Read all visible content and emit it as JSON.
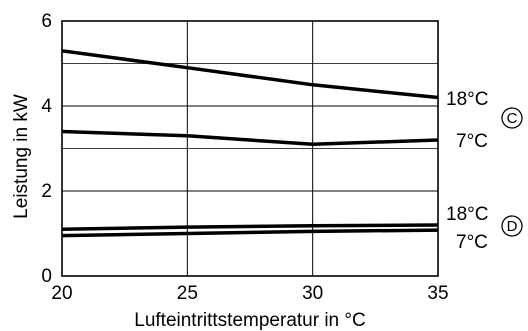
{
  "chart_data": {
    "type": "line",
    "title": "",
    "xlabel": "Lufteintrittstemperatur in °C",
    "ylabel": "Leistung in kW",
    "xlim": [
      20,
      35
    ],
    "ylim": [
      0,
      6
    ],
    "x_ticks": [
      "20",
      "25",
      "30",
      "35"
    ],
    "y_ticks": [
      "0",
      "2",
      "4",
      "6"
    ],
    "x_tick_values": [
      20,
      25,
      30,
      35
    ],
    "y_tick_values": [
      0,
      2,
      4,
      6
    ],
    "grid": true,
    "extra_hlines": [
      3,
      5
    ],
    "series": [
      {
        "label": "18°C",
        "group": "C",
        "x": [
          20,
          25,
          30,
          35
        ],
        "y": [
          5.3,
          4.9,
          4.5,
          4.2
        ]
      },
      {
        "label": "7°C",
        "group": "C",
        "x": [
          20,
          25,
          30,
          35
        ],
        "y": [
          3.4,
          3.3,
          3.1,
          3.2
        ]
      },
      {
        "label": "18°C",
        "group": "D",
        "x": [
          20,
          25,
          30,
          35
        ],
        "y": [
          1.1,
          1.15,
          1.18,
          1.2
        ]
      },
      {
        "label": "7°C",
        "group": "D",
        "x": [
          20,
          25,
          30,
          35
        ],
        "y": [
          0.95,
          1.0,
          1.05,
          1.08
        ]
      }
    ],
    "markers": [
      {
        "letter": "C"
      },
      {
        "letter": "D"
      }
    ]
  }
}
